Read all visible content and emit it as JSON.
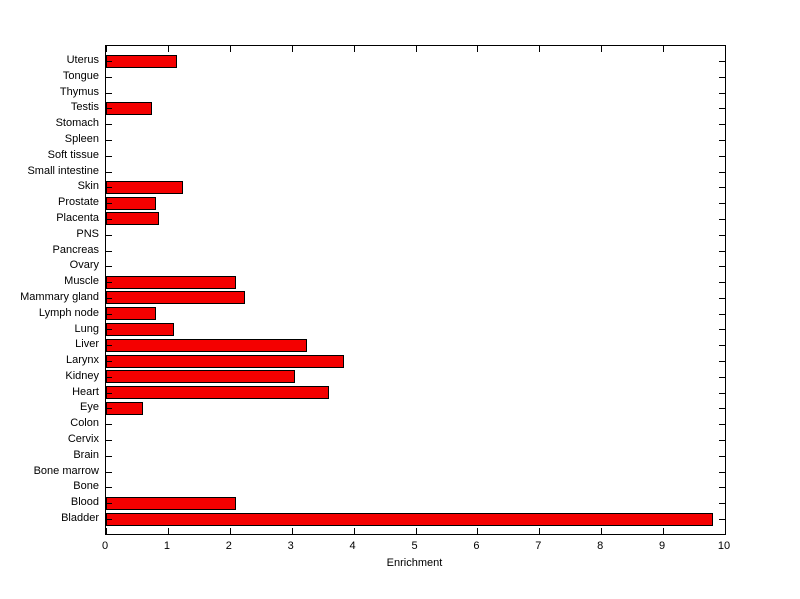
{
  "chart_data": {
    "type": "bar",
    "orientation": "horizontal",
    "title": "",
    "xlabel": "Enrichment",
    "ylabel": "",
    "xlim": [
      0,
      10
    ],
    "xticks": [
      0,
      1,
      2,
      3,
      4,
      5,
      6,
      7,
      8,
      9,
      10
    ],
    "grid": false,
    "legend": "none",
    "bar_color": "#f40000",
    "bar_edge_color": "#000000",
    "axis_color": "#000000",
    "categories": [
      "Uterus",
      "Tongue",
      "Thymus",
      "Testis",
      "Stomach",
      "Spleen",
      "Soft tissue",
      "Small intestine",
      "Skin",
      "Prostate",
      "Placenta",
      "PNS",
      "Pancreas",
      "Ovary",
      "Muscle",
      "Mammary gland",
      "Lymph node",
      "Lung",
      "Liver",
      "Larynx",
      "Kidney",
      "Heart",
      "Eye",
      "Colon",
      "Cervix",
      "Brain",
      "Bone marrow",
      "Bone",
      "Blood",
      "Bladder"
    ],
    "values": [
      1.15,
      0,
      0,
      0.75,
      0,
      0,
      0,
      0,
      1.25,
      0.8,
      0.85,
      0,
      0,
      0,
      2.1,
      2.25,
      0.8,
      1.1,
      3.25,
      3.85,
      3.05,
      3.6,
      0.6,
      0,
      0,
      0,
      0,
      0,
      2.1,
      9.8
    ]
  }
}
